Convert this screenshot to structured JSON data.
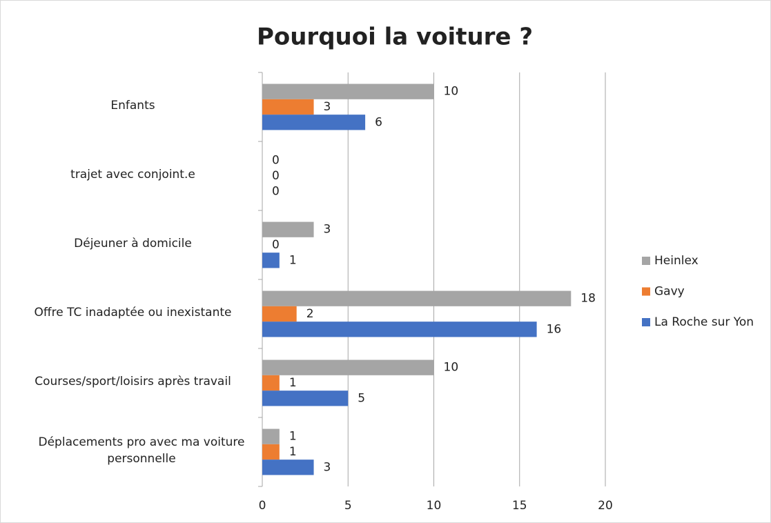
{
  "chart_data": {
    "type": "bar",
    "orientation": "horizontal",
    "title": "Pourquoi la voiture ?",
    "categories": [
      "Enfants",
      "trajet avec conjoint.e",
      "Déjeuner à domicile",
      "Offre TC inadaptée ou inexistante",
      "Courses/sport/loisirs après travail",
      "Déplacements pro avec ma voiture personnelle"
    ],
    "series": [
      {
        "name": "Heinlex",
        "color": "#a5a5a5",
        "values": [
          10,
          0,
          3,
          18,
          10,
          1
        ]
      },
      {
        "name": "Gavy",
        "color": "#ed7d31",
        "values": [
          3,
          0,
          0,
          2,
          1,
          1
        ]
      },
      {
        "name": "La Roche sur Yon",
        "color": "#4472c4",
        "values": [
          6,
          0,
          1,
          16,
          5,
          3
        ]
      }
    ],
    "xlim": [
      0,
      20
    ],
    "xticks": [
      0,
      5,
      10,
      15,
      20
    ],
    "grid": true,
    "legend": "right"
  }
}
